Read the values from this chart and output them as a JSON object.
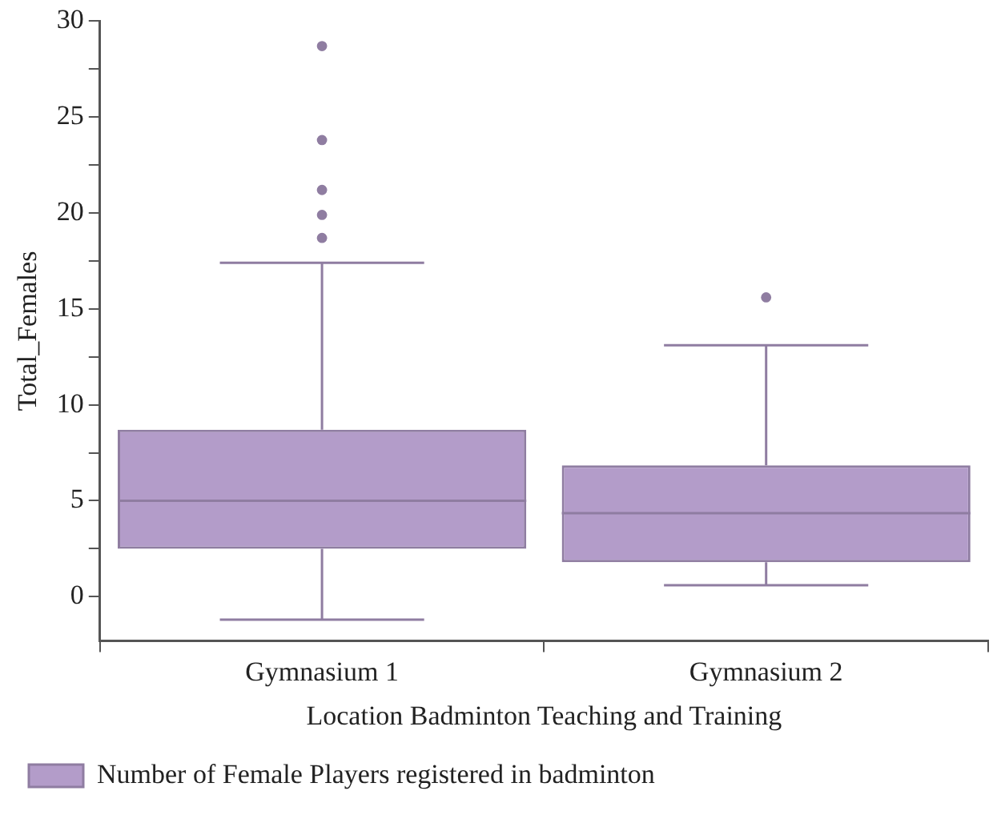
{
  "chart_data": {
    "type": "box",
    "xlabel": "Location Badminton Teaching and Training",
    "ylabel": "Total_Females",
    "categories": [
      "Gymnasium 1",
      "Gymnasium 2"
    ],
    "series": [
      {
        "name": "Number of Female Players registered in badminton",
        "color": "#b39cc9",
        "boxes": [
          {
            "low": -1.2,
            "q1": 2.5,
            "median": 5.0,
            "q3": 8.7,
            "high": 17.4,
            "outliers": [
              18.7,
              19.9,
              21.2,
              23.8,
              28.7
            ]
          },
          {
            "low": 0.6,
            "q1": 1.8,
            "median": 4.35,
            "q3": 6.85,
            "high": 13.1,
            "outliers": [
              15.6
            ]
          }
        ]
      }
    ],
    "ylim": [
      -2.3,
      30
    ],
    "yticks": [
      0,
      {
        "value": 2.5,
        "label": null
      },
      5,
      {
        "value": 7.5,
        "label": null
      },
      10,
      {
        "value": 12.5,
        "label": null
      },
      15,
      {
        "value": 17.5,
        "label": null
      },
      20,
      {
        "value": 22.5,
        "label": null
      },
      25,
      {
        "value": 27.5,
        "label": null
      },
      30
    ],
    "grid": false,
    "legend": "bottom"
  }
}
